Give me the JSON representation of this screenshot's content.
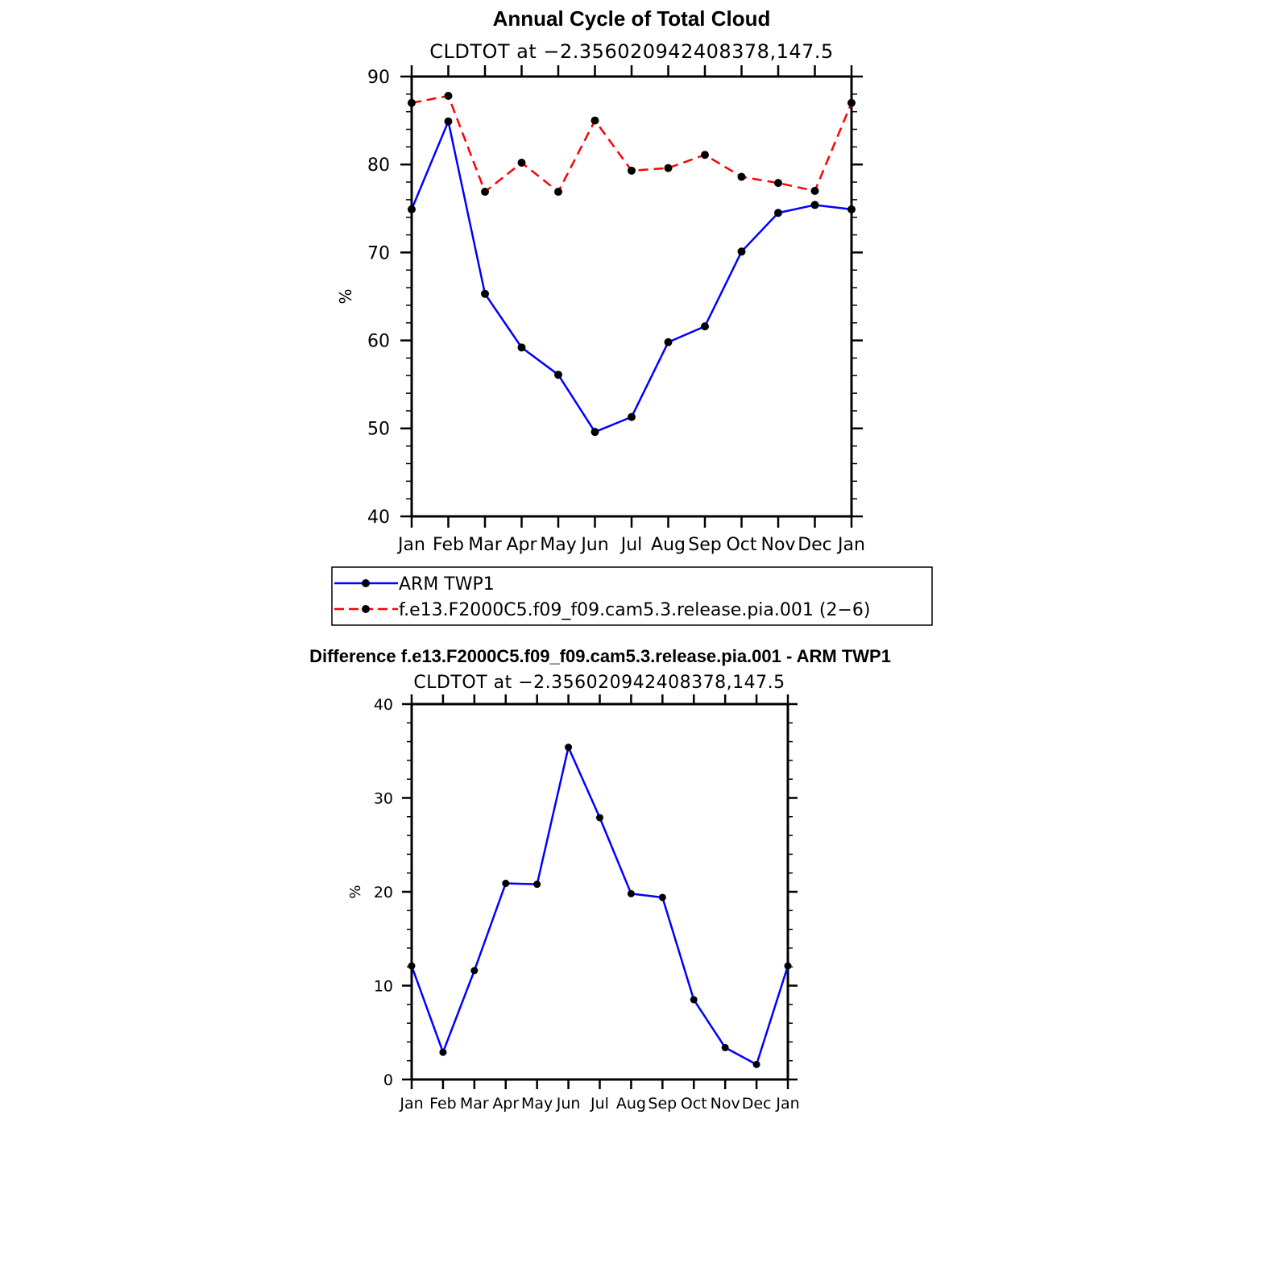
{
  "chart_data": [
    {
      "type": "line",
      "title": "Annual Cycle of Total Cloud",
      "subtitle": "CLDTOT at −2.356020942408378,147.5",
      "ylabel": "%",
      "xlabel": "",
      "ylim": [
        40,
        90
      ],
      "yticks": [
        40,
        50,
        60,
        70,
        80,
        90
      ],
      "categories": [
        "Jan",
        "Feb",
        "Mar",
        "Apr",
        "May",
        "Jun",
        "Jul",
        "Aug",
        "Sep",
        "Oct",
        "Nov",
        "Dec",
        "Jan"
      ],
      "grid": false,
      "legend_position": "bottom",
      "series": [
        {
          "name": "ARM TWP1",
          "color": "#0000ff",
          "style": "solid",
          "marker": "dot",
          "values": [
            74.9,
            84.9,
            65.3,
            59.2,
            56.1,
            49.6,
            51.3,
            59.8,
            61.6,
            70.1,
            74.5,
            75.4,
            74.9
          ]
        },
        {
          "name": "f.e13.F2000C5.f09_f09.cam5.3.release.pia.001 (2−6)",
          "color": "#ff0000",
          "style": "dashed",
          "marker": "dot",
          "values": [
            87.0,
            87.8,
            76.9,
            80.2,
            76.9,
            85.0,
            79.3,
            79.6,
            81.1,
            78.6,
            77.9,
            77.0,
            87.0
          ]
        }
      ]
    },
    {
      "type": "line",
      "title": "Difference f.e13.F2000C5.f09_f09.cam5.3.release.pia.001 - ARM TWP1",
      "subtitle": "CLDTOT at −2.356020942408378,147.5",
      "ylabel": "%",
      "xlabel": "",
      "ylim": [
        0,
        40
      ],
      "yticks": [
        0,
        10,
        20,
        30,
        40
      ],
      "categories": [
        "Jan",
        "Feb",
        "Mar",
        "Apr",
        "May",
        "Jun",
        "Jul",
        "Aug",
        "Sep",
        "Oct",
        "Nov",
        "Dec",
        "Jan"
      ],
      "grid": false,
      "series": [
        {
          "color": "#0000ff",
          "style": "solid",
          "marker": "dot",
          "values": [
            12.1,
            2.9,
            11.6,
            20.9,
            20.8,
            35.4,
            27.9,
            19.8,
            19.4,
            8.5,
            3.4,
            1.6,
            12.1
          ]
        }
      ]
    }
  ]
}
